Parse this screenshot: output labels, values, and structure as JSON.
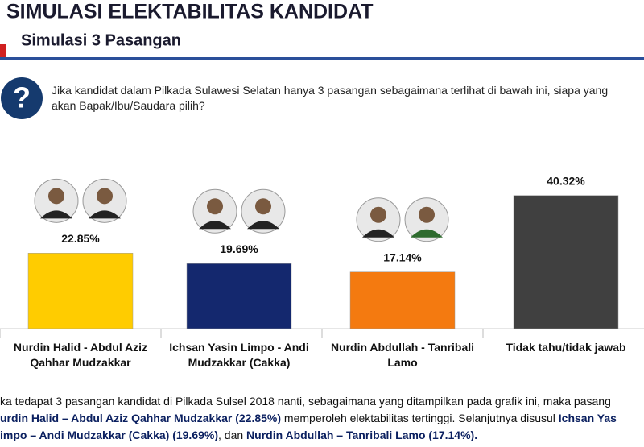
{
  "header": {
    "title": "SIMULASI ELEKTABILITAS KANDIDAT",
    "subtitle": "Simulasi 3 Pasangan"
  },
  "question": "Jika kandidat dalam Pilkada Sulawesi Selatan  hanya 3 pasangan sebagaimana terlihat di bawah ini, siapa yang akan Bapak/Ibu/Saudara pilih?",
  "chart_data": {
    "type": "bar",
    "categories": [
      "Nurdin Halid - Abdul Aziz Qahhar Mudzakkar",
      "Ichsan Yasin Limpo - Andi Mudzakkar (Cakka)",
      "Nurdin Abdullah - Tanribali Lamo",
      "Tidak tahu/tidak jawab"
    ],
    "values": [
      22.85,
      19.69,
      17.14,
      40.32
    ],
    "value_labels": [
      "22.85%",
      "19.69%",
      "17.14%",
      "40.32%"
    ],
    "colors": [
      "#ffcc00",
      "#14286e",
      "#f47a10",
      "#404040"
    ]
  },
  "footer": [
    [
      {
        "text": "ka tedapat 3 pasangan kandidat di Pilkada Sulsel 2018 nanti, sebagaimana yang ditampilkan pada grafik ini, maka pasang",
        "bold": false
      }
    ],
    [
      {
        "text": "urdin Halid – Abdul Aziz Qahhar Mudzakkar (22.85%)",
        "bold": true
      },
      {
        "text": " memperoleh elektabilitas tertinggi. Selanjutnya disusul ",
        "bold": false
      },
      {
        "text": "Ichsan Yas",
        "bold": true
      }
    ],
    [
      {
        "text": "impo – Andi Mudzakkar (Cakka) (19.69%)",
        "bold": true
      },
      {
        "text": ", dan ",
        "bold": false
      },
      {
        "text": "Nurdin Abdullah – Tanribali Lamo (17.14%).",
        "bold": true
      }
    ]
  ]
}
